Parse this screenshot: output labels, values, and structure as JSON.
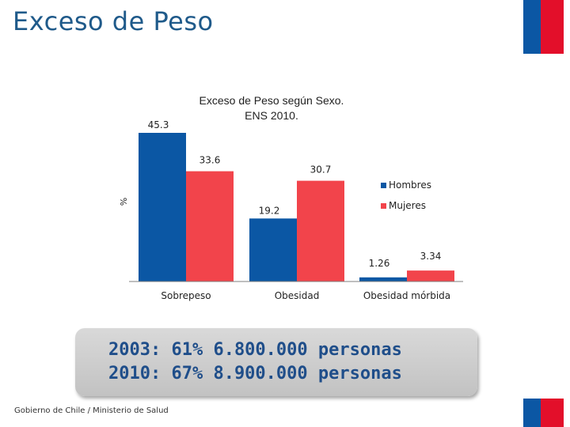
{
  "slide": {
    "title": "Exceso de Peso",
    "footer": "Gobierno de Chile / Ministerio de Salud"
  },
  "colors": {
    "hombres": "#0b57a4",
    "mujeres": "#f2444b",
    "title": "#1f5a8a",
    "flag_blue": "#0b57a4",
    "flag_red": "#e30f2a"
  },
  "chart_data": {
    "type": "bar",
    "title_line1": "Exceso de Peso según Sexo.",
    "title_line2": "ENS 2010.",
    "ylabel": "%",
    "categories": [
      "Sobrepeso",
      "Obesidad",
      "Obesidad mórbida"
    ],
    "series": [
      {
        "name": "Hombres",
        "values": [
          45.3,
          19.2,
          1.26
        ],
        "labels": [
          "45.3",
          "19.2",
          "1.26"
        ]
      },
      {
        "name": "Mujeres",
        "values": [
          33.6,
          30.7,
          3.34
        ],
        "labels": [
          "33.6",
          "30.7",
          "3.34"
        ]
      }
    ],
    "ylim": [
      0,
      45.3
    ],
    "legend_position": "right",
    "grid": false
  },
  "summary": {
    "line1": "2003: 61% 6.800.000 personas",
    "line2": "2010: 67% 8.900.000 personas"
  }
}
